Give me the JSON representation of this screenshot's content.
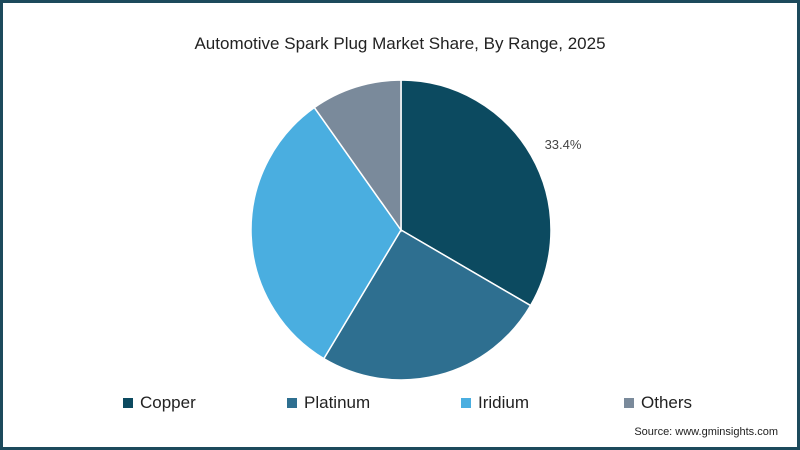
{
  "chart_data": {
    "type": "pie",
    "title": "Automotive Spark Plug Market Share, By Range, 2025",
    "slices": [
      {
        "name": "Copper",
        "value": 33.4,
        "color": "#0c4a60",
        "label": "33.4%"
      },
      {
        "name": "Platinum",
        "value": 25.2,
        "color": "#2e6f90",
        "label": ""
      },
      {
        "name": "Iridium",
        "value": 31.6,
        "color": "#4aaee0",
        "label": ""
      },
      {
        "name": "Others",
        "value": 9.8,
        "color": "#7a8a9b",
        "label": ""
      }
    ],
    "legend_position": "bottom",
    "source": "Source: www.gminsights.com"
  }
}
